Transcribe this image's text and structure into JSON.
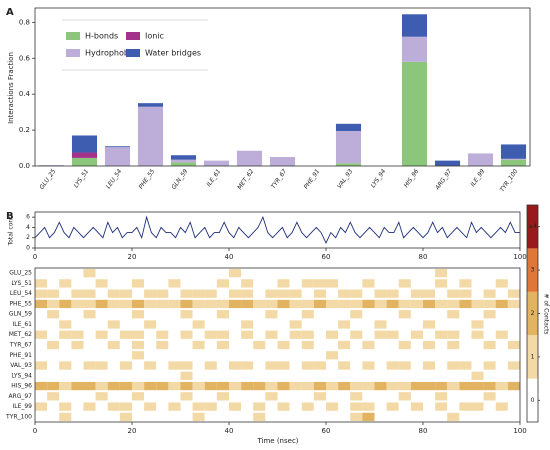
{
  "chart_data": [
    {
      "type": "bar",
      "panel": "A",
      "ylabel": "Interactions Fraction",
      "categories": [
        "GLU_25",
        "LYS_51",
        "LEU_54",
        "PHE_55",
        "GLN_59",
        "ILE_61",
        "MET_62",
        "TYR_67",
        "PHE_91",
        "VAL_93",
        "LYS_94",
        "HIS_96",
        "ARG_97",
        "ILE_99",
        "TYR_100"
      ],
      "series": [
        {
          "name": "H-bonds",
          "color": "#8cc67a",
          "values": [
            0,
            0.045,
            0,
            0,
            0.02,
            0,
            0,
            0,
            0,
            0.015,
            0,
            0.58,
            0,
            0,
            0.035
          ]
        },
        {
          "name": "Hydrophobic",
          "color": "#bcaed8",
          "values": [
            0.005,
            0,
            0.105,
            0.33,
            0.015,
            0.03,
            0.085,
            0.05,
            0,
            0.18,
            0,
            0.14,
            0,
            0.07,
            0.005
          ]
        },
        {
          "name": "Ionic",
          "color": "#a3338a",
          "values": [
            0,
            0.03,
            0,
            0,
            0,
            0,
            0,
            0,
            0,
            0,
            0,
            0,
            0,
            0,
            0
          ]
        },
        {
          "name": "Water bridges",
          "color": "#3f5db0",
          "values": [
            0,
            0.095,
            0.005,
            0.02,
            0.025,
            0,
            0,
            0,
            0,
            0.04,
            0,
            0.125,
            0.03,
            0,
            0.08
          ]
        }
      ],
      "stacked": true,
      "ylim": [
        0,
        0.88
      ],
      "yticks": [
        {
          "value": 0,
          "label": "0.0"
        },
        0.2,
        0.4,
        0.6,
        0.8
      ]
    },
    {
      "type": "line",
      "panel": "B",
      "ylabel": "Total cont.",
      "color": "#1f2f7a",
      "x": [
        0,
        1,
        2,
        3,
        4,
        5,
        6,
        7,
        8,
        9,
        10,
        11,
        12,
        13,
        14,
        15,
        16,
        17,
        18,
        19,
        20,
        21,
        22,
        23,
        24,
        25,
        26,
        27,
        28,
        29,
        30,
        31,
        32,
        33,
        34,
        35,
        36,
        37,
        38,
        39,
        40,
        41,
        42,
        43,
        44,
        45,
        46,
        47,
        48,
        49,
        50,
        51,
        52,
        53,
        54,
        55,
        56,
        57,
        58,
        59,
        60,
        61,
        62,
        63,
        64,
        65,
        66,
        67,
        68,
        69,
        70,
        71,
        72,
        73,
        74,
        75,
        76,
        77,
        78,
        79,
        80,
        81,
        82,
        83,
        84,
        85,
        86,
        87,
        88,
        89,
        90,
        91,
        92,
        93,
        94,
        95,
        96,
        97,
        98,
        99,
        100
      ],
      "values": [
        2,
        3,
        4,
        2,
        3,
        5,
        3,
        2,
        4,
        3,
        2,
        3,
        4,
        3,
        2,
        5,
        3,
        4,
        2,
        3,
        3,
        4,
        2,
        6,
        3,
        2,
        4,
        3,
        3,
        2,
        4,
        3,
        5,
        2,
        3,
        4,
        2,
        3,
        3,
        5,
        3,
        2,
        4,
        3,
        2,
        3,
        4,
        6,
        3,
        2,
        3,
        4,
        2,
        3,
        5,
        3,
        2,
        3,
        4,
        3,
        1,
        3,
        2,
        4,
        3,
        5,
        3,
        2,
        3,
        4,
        3,
        2,
        4,
        3,
        3,
        5,
        2,
        3,
        4,
        3,
        2,
        3,
        5,
        3,
        4,
        2,
        3,
        4,
        3,
        2,
        5,
        3,
        4,
        3,
        2,
        3,
        4,
        3,
        5,
        3,
        3
      ],
      "xlim": [
        0,
        100
      ],
      "xticks": [
        0,
        20,
        40,
        60,
        80,
        100
      ],
      "ylim": [
        0,
        7
      ],
      "yticks": [
        0,
        2,
        4,
        6
      ]
    },
    {
      "type": "heatmap",
      "xlabel": "Time (nsec)",
      "colorbar_label": "# of Contacts",
      "rows": [
        "GLU_25",
        "LYS_51",
        "LEU_54",
        "PHE_55",
        "GLN_59",
        "ILE_61",
        "MET_62",
        "TYR_67",
        "PHE_91",
        "VAL_93",
        "LYS_94",
        "HIS_96",
        "ARG_97",
        "ILE_99",
        "TYR_100"
      ],
      "bins": [
        0,
        2.5,
        5,
        7.5,
        10,
        12.5,
        15,
        17.5,
        20,
        22.5,
        25,
        27.5,
        30,
        32.5,
        35,
        37.5,
        40,
        42.5,
        45,
        47.5,
        50,
        52.5,
        55,
        57.5,
        60,
        62.5,
        65,
        67.5,
        70,
        72.5,
        75,
        77.5,
        80,
        82.5,
        85,
        87.5,
        90,
        92.5,
        95,
        97.5,
        100
      ],
      "values": [
        [
          0,
          0,
          0,
          0,
          1,
          0,
          0,
          0,
          0,
          0,
          0,
          0,
          0,
          0,
          0,
          0,
          1,
          0,
          0,
          0,
          0,
          0,
          0,
          0,
          0,
          0,
          0,
          0,
          0,
          0,
          0,
          0,
          0,
          1,
          0,
          0,
          0,
          0,
          0,
          0
        ],
        [
          1,
          0,
          1,
          0,
          0,
          1,
          0,
          0,
          1,
          0,
          0,
          1,
          0,
          0,
          0,
          1,
          0,
          1,
          0,
          0,
          1,
          0,
          1,
          1,
          1,
          0,
          0,
          1,
          0,
          0,
          1,
          0,
          0,
          1,
          0,
          1,
          0,
          0,
          1,
          0
        ],
        [
          1,
          1,
          0,
          1,
          1,
          0,
          1,
          1,
          0,
          1,
          1,
          0,
          1,
          1,
          1,
          0,
          1,
          1,
          0,
          1,
          1,
          1,
          0,
          1,
          0,
          1,
          1,
          0,
          1,
          1,
          0,
          1,
          1,
          0,
          1,
          1,
          0,
          1,
          0,
          1
        ],
        [
          2,
          1,
          2,
          1,
          1,
          2,
          1,
          1,
          2,
          1,
          1,
          1,
          2,
          1,
          1,
          1,
          2,
          2,
          1,
          1,
          2,
          1,
          1,
          2,
          1,
          1,
          1,
          2,
          1,
          2,
          1,
          1,
          2,
          1,
          1,
          2,
          1,
          1,
          2,
          1
        ],
        [
          0,
          1,
          0,
          0,
          1,
          0,
          0,
          0,
          1,
          0,
          0,
          0,
          1,
          0,
          0,
          1,
          0,
          0,
          0,
          1,
          0,
          0,
          1,
          0,
          0,
          0,
          1,
          0,
          0,
          0,
          1,
          0,
          0,
          0,
          1,
          0,
          0,
          1,
          0,
          0
        ],
        [
          0,
          0,
          1,
          0,
          0,
          0,
          1,
          0,
          0,
          1,
          0,
          0,
          0,
          1,
          0,
          0,
          0,
          1,
          0,
          0,
          0,
          1,
          0,
          0,
          0,
          1,
          0,
          0,
          1,
          0,
          0,
          0,
          1,
          0,
          0,
          0,
          1,
          0,
          0,
          0
        ],
        [
          1,
          0,
          1,
          1,
          0,
          1,
          0,
          1,
          1,
          0,
          1,
          0,
          1,
          0,
          1,
          1,
          0,
          1,
          0,
          1,
          0,
          1,
          1,
          0,
          1,
          0,
          1,
          0,
          1,
          1,
          0,
          1,
          0,
          1,
          1,
          0,
          1,
          0,
          1,
          0
        ],
        [
          0,
          1,
          0,
          1,
          0,
          0,
          1,
          0,
          1,
          0,
          1,
          0,
          0,
          1,
          0,
          1,
          0,
          0,
          1,
          0,
          1,
          0,
          1,
          0,
          0,
          1,
          0,
          1,
          0,
          0,
          1,
          0,
          1,
          0,
          1,
          0,
          0,
          1,
          0,
          1
        ],
        [
          0,
          0,
          0,
          0,
          0,
          0,
          0,
          0,
          1,
          0,
          0,
          0,
          0,
          0,
          0,
          0,
          0,
          0,
          0,
          0,
          0,
          0,
          0,
          0,
          1,
          0,
          0,
          0,
          0,
          0,
          0,
          0,
          0,
          0,
          0,
          0,
          0,
          0,
          0,
          0
        ],
        [
          1,
          0,
          1,
          0,
          1,
          1,
          0,
          1,
          0,
          1,
          0,
          1,
          1,
          0,
          1,
          0,
          1,
          1,
          0,
          1,
          1,
          0,
          1,
          1,
          0,
          1,
          0,
          1,
          0,
          1,
          1,
          0,
          1,
          0,
          1,
          1,
          0,
          1,
          0,
          1
        ],
        [
          0,
          0,
          0,
          0,
          0,
          0,
          0,
          0,
          0,
          0,
          0,
          0,
          1,
          0,
          0,
          0,
          0,
          0,
          0,
          0,
          0,
          0,
          0,
          0,
          0,
          0,
          0,
          0,
          0,
          0,
          0,
          0,
          0,
          0,
          0,
          0,
          1,
          0,
          0,
          0
        ],
        [
          2,
          2,
          1,
          2,
          2,
          1,
          2,
          2,
          1,
          2,
          2,
          1,
          2,
          1,
          2,
          2,
          1,
          2,
          2,
          1,
          2,
          1,
          1,
          2,
          1,
          2,
          1,
          1,
          2,
          1,
          1,
          2,
          2,
          2,
          1,
          2,
          2,
          2,
          1,
          2
        ],
        [
          0,
          1,
          0,
          0,
          0,
          1,
          0,
          0,
          1,
          0,
          0,
          0,
          1,
          0,
          0,
          1,
          0,
          0,
          0,
          1,
          0,
          0,
          0,
          1,
          0,
          0,
          1,
          0,
          0,
          0,
          1,
          0,
          0,
          1,
          0,
          0,
          0,
          1,
          0,
          0
        ],
        [
          1,
          0,
          1,
          0,
          1,
          0,
          1,
          1,
          0,
          1,
          0,
          1,
          0,
          1,
          1,
          0,
          1,
          0,
          1,
          0,
          1,
          0,
          1,
          0,
          1,
          0,
          1,
          1,
          0,
          1,
          0,
          1,
          0,
          1,
          0,
          1,
          1,
          0,
          1,
          0
        ],
        [
          0,
          0,
          1,
          0,
          0,
          0,
          0,
          1,
          0,
          0,
          0,
          0,
          0,
          1,
          0,
          0,
          0,
          0,
          1,
          0,
          0,
          0,
          0,
          0,
          0,
          0,
          1,
          2,
          0,
          0,
          0,
          0,
          0,
          0,
          1,
          0,
          0,
          0,
          0,
          0
        ]
      ],
      "xlim": [
        0,
        100
      ],
      "xticks": [
        0,
        20,
        40,
        60,
        80,
        100
      ],
      "colors": [
        "#ffffff",
        "#f2d9a6",
        "#e2b461",
        "#e0773a",
        "#981b1b"
      ],
      "clim": [
        -0.5,
        4.5
      ],
      "cticks": [
        0,
        1,
        2,
        3,
        {
          "value": 4,
          "label": "≥4"
        }
      ]
    }
  ]
}
